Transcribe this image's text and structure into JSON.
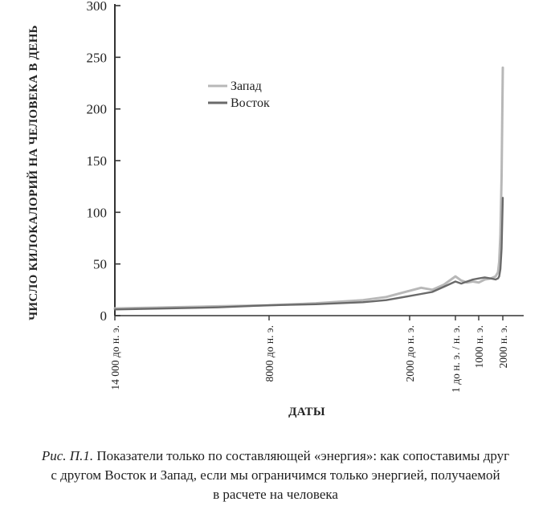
{
  "chart_data": {
    "type": "line",
    "ylabel": "ЧИСЛО КИЛОКАЛОРИЙ НА ЧЕЛОВЕКА В ДЕНЬ",
    "xlabel": "ДАТЫ",
    "ylim": [
      0,
      300
    ],
    "yticks": [
      "0",
      "50",
      "100",
      "150",
      "200",
      "250",
      "300"
    ],
    "y_tick_values": [
      0,
      50,
      100,
      150,
      200,
      250,
      300
    ],
    "xticks": [
      {
        "label": "14 000 до н. э.",
        "year": -14000
      },
      {
        "label": "8000 до н. э.",
        "year": -8000
      },
      {
        "label": "2000 до н. э.",
        "year": -2000
      },
      {
        "label": "1 до н. э. / н. э.",
        "year": 0
      },
      {
        "label": "1000 н. э.",
        "year": 1000
      },
      {
        "label": "2000 н. э.",
        "year": 2000
      }
    ],
    "grid": false,
    "legend_position": "upper-left",
    "series": [
      {
        "name": "Запад",
        "color": "#b8b8b8",
        "points": [
          [
            -14000,
            7
          ],
          [
            -12000,
            8
          ],
          [
            -10000,
            9
          ],
          [
            -8000,
            10
          ],
          [
            -6000,
            12
          ],
          [
            -4000,
            15
          ],
          [
            -3000,
            18
          ],
          [
            -2000,
            24
          ],
          [
            -1500,
            27
          ],
          [
            -1000,
            25
          ],
          [
            -500,
            30
          ],
          [
            0,
            38
          ],
          [
            250,
            34
          ],
          [
            500,
            32
          ],
          [
            750,
            33
          ],
          [
            1000,
            32
          ],
          [
            1250,
            35
          ],
          [
            1500,
            36
          ],
          [
            1700,
            38
          ],
          [
            1800,
            42
          ],
          [
            1850,
            52
          ],
          [
            1900,
            78
          ],
          [
            1950,
            135
          ],
          [
            2000,
            240
          ]
        ]
      },
      {
        "name": "Восток",
        "color": "#6a6a6a",
        "points": [
          [
            -14000,
            6
          ],
          [
            -12000,
            7
          ],
          [
            -10000,
            8
          ],
          [
            -8000,
            10
          ],
          [
            -6000,
            11
          ],
          [
            -4000,
            13
          ],
          [
            -3000,
            15
          ],
          [
            -2000,
            19
          ],
          [
            -1500,
            21
          ],
          [
            -1000,
            23
          ],
          [
            -500,
            28
          ],
          [
            0,
            33
          ],
          [
            250,
            31
          ],
          [
            500,
            33
          ],
          [
            750,
            35
          ],
          [
            1000,
            36
          ],
          [
            1250,
            37
          ],
          [
            1500,
            36
          ],
          [
            1700,
            35
          ],
          [
            1800,
            36
          ],
          [
            1850,
            38
          ],
          [
            1900,
            45
          ],
          [
            1950,
            65
          ],
          [
            2000,
            114
          ]
        ]
      }
    ]
  },
  "caption": {
    "prefix": "Рис. П.1.",
    "line1": " Показатели только по составляющей «энергия»: как сопоставимы друг",
    "line2": "с другом Восток и Запад, если мы ограничимся только энергией, получаемой",
    "line3": "в расчете на человека"
  }
}
